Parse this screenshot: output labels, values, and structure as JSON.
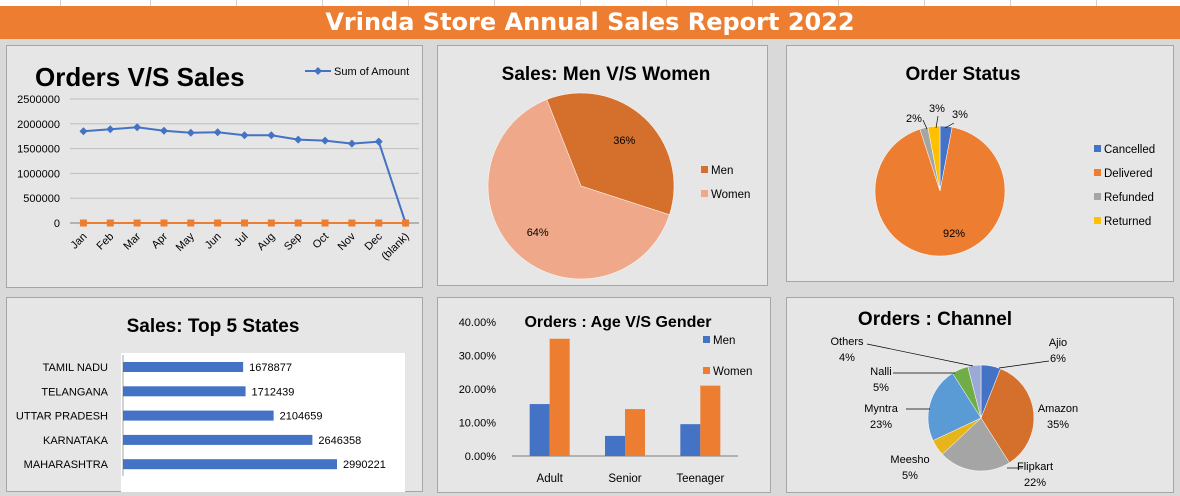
{
  "report_title": "Vrinda Store Annual Sales Report 2022",
  "chart_data": [
    {
      "id": "orders_vs_sales",
      "type": "line",
      "title": "Orders  V/S Sales",
      "categories": [
        "Jan",
        "Feb",
        "Mar",
        "Apr",
        "May",
        "Jun",
        "Jul",
        "Aug",
        "Sep",
        "Oct",
        "Nov",
        "Dec",
        "(blank)"
      ],
      "series": [
        {
          "name": "Sum of Amount",
          "color": "#4472c4",
          "values": [
            1850000,
            1890000,
            1930000,
            1860000,
            1820000,
            1830000,
            1770000,
            1770000,
            1680000,
            1660000,
            1600000,
            1640000,
            0
          ]
        },
        {
          "color": "#ed7d31",
          "values": [
            0,
            0,
            0,
            0,
            0,
            0,
            0,
            0,
            0,
            0,
            0,
            0,
            0
          ]
        }
      ],
      "y_ticks": [
        "2500000",
        "2000000",
        "1500000",
        "1000000",
        "500000",
        "0"
      ],
      "ylim": [
        0,
        2500000
      ],
      "grid": true,
      "legend": "top-right"
    },
    {
      "id": "sales_men_women",
      "type": "pie",
      "title": "Sales: Men V/S Women",
      "slices": [
        {
          "label": "Men",
          "value": 36,
          "pct_label": "36%",
          "color": "#d4702c"
        },
        {
          "label": "Women",
          "value": 64,
          "pct_label": "64%",
          "color": "#f0a88a"
        }
      ],
      "legend": "right"
    },
    {
      "id": "order_status",
      "type": "pie",
      "title": "Order Status",
      "slices": [
        {
          "label": "Cancelled",
          "value": 3,
          "pct_label": "3%",
          "color": "#4472c4"
        },
        {
          "label": "Delivered",
          "value": 92,
          "pct_label": "92%",
          "color": "#ed7d31"
        },
        {
          "label": "Refunded",
          "value": 2,
          "pct_label": "2%",
          "color": "#a5a5a5"
        },
        {
          "label": "Returned",
          "value": 3,
          "pct_label": "3%",
          "color": "#ffc000"
        }
      ],
      "legend": "right"
    },
    {
      "id": "top5_states",
      "type": "bar",
      "orientation": "horizontal",
      "title": "Sales: Top 5 States",
      "categories": [
        "TAMIL NADU",
        "TELANGANA",
        "UTTAR PRADESH",
        "KARNATAKA",
        "MAHARASHTRA"
      ],
      "values": [
        1678877,
        1712439,
        2104659,
        2646358,
        2990221
      ],
      "value_labels": [
        "1678877",
        "1712439",
        "2104659",
        "2646358",
        "2990221"
      ],
      "color": "#4472c4"
    },
    {
      "id": "age_vs_gender",
      "type": "bar",
      "title": "Orders : Age V/S Gender",
      "categories": [
        "Adult",
        "Senior",
        "Teenager"
      ],
      "series": [
        {
          "name": "Men",
          "values": [
            15.5,
            6.0,
            9.5
          ],
          "color": "#4472c4"
        },
        {
          "name": "Women",
          "values": [
            35.0,
            14.0,
            21.0
          ],
          "color": "#ed7d31"
        }
      ],
      "y_ticks": [
        "40.00%",
        "30.00%",
        "20.00%",
        "10.00%",
        "0.00%"
      ],
      "ylim": [
        0,
        40
      ],
      "legend": "right"
    },
    {
      "id": "orders_channel",
      "type": "pie",
      "title": "Orders : Channel",
      "slices": [
        {
          "label": "Ajio",
          "value": 6,
          "pct_label": "6%",
          "color": "#4472c4"
        },
        {
          "label": "Amazon",
          "value": 35,
          "pct_label": "35%",
          "color": "#d4702c"
        },
        {
          "label": "Flipkart",
          "value": 22,
          "pct_label": "22%",
          "color": "#a5a5a5"
        },
        {
          "label": "Meesho",
          "value": 5,
          "pct_label": "5%",
          "color": "#e8b41c"
        },
        {
          "label": "Myntra",
          "value": 23,
          "pct_label": "23%",
          "color": "#5b9bd5"
        },
        {
          "label": "Nalli",
          "value": 5,
          "pct_label": "5%",
          "color": "#70ad47"
        },
        {
          "label": "Others",
          "value": 4,
          "pct_label": "4%",
          "color": "#9aa9d6"
        }
      ]
    }
  ]
}
